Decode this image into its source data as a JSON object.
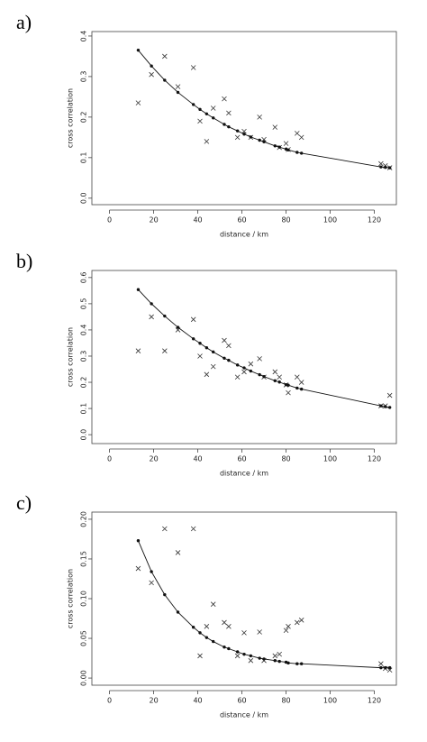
{
  "chart_data": [
    {
      "type": "scatter",
      "panel_label": "a)",
      "ylabel": "cross correlation",
      "xlabel": "distance / km",
      "x": [
        13,
        19,
        25,
        31,
        38,
        41,
        44,
        47,
        52,
        54,
        58,
        61,
        64,
        68,
        70,
        75,
        77,
        80,
        81,
        85,
        87,
        123,
        125,
        127
      ],
      "series": [
        {
          "marker": "x",
          "color": "#333333",
          "values": [
            0.235,
            0.305,
            0.35,
            0.275,
            0.322,
            0.19,
            0.14,
            0.222,
            0.245,
            0.21,
            0.15,
            0.165,
            0.15,
            0.2,
            0.145,
            0.175,
            0.125,
            0.135,
            0.12,
            0.16,
            0.15,
            0.085,
            0.08,
            0.075
          ]
        },
        {
          "marker": "dot",
          "line": true,
          "color": "#111111",
          "values": [
            0.365,
            0.326,
            0.291,
            0.261,
            0.231,
            0.219,
            0.208,
            0.198,
            0.182,
            0.176,
            0.166,
            0.158,
            0.151,
            0.143,
            0.139,
            0.129,
            0.126,
            0.121,
            0.119,
            0.113,
            0.111,
            0.077,
            0.076,
            0.075
          ]
        }
      ],
      "xlim": [
        -8,
        130
      ],
      "xticks": [
        0,
        20,
        40,
        60,
        80,
        100,
        120
      ],
      "ylim": [
        -0.016,
        0.411
      ],
      "yticks": [
        {
          "value": 0,
          "label": "0.0"
        },
        {
          "value": 0.1,
          "label": "0.1"
        },
        {
          "value": 0.2,
          "label": "0.2"
        },
        {
          "value": 0.3,
          "label": "0.3"
        },
        {
          "value": 0.4,
          "label": "0.4"
        }
      ]
    },
    {
      "type": "scatter",
      "panel_label": "b)",
      "ylabel": "cross correlation",
      "xlabel": "distance / km",
      "x": [
        13,
        19,
        25,
        31,
        38,
        41,
        44,
        47,
        52,
        54,
        58,
        61,
        64,
        68,
        70,
        75,
        77,
        80,
        81,
        85,
        87,
        123,
        125,
        127
      ],
      "series": [
        {
          "marker": "x",
          "color": "#333333",
          "values": [
            0.32,
            0.45,
            0.32,
            0.4,
            0.44,
            0.3,
            0.23,
            0.26,
            0.36,
            0.34,
            0.22,
            0.24,
            0.27,
            0.29,
            0.22,
            0.24,
            0.22,
            0.19,
            0.16,
            0.22,
            0.2,
            0.11,
            0.11,
            0.15
          ]
        },
        {
          "marker": "dot",
          "line": true,
          "color": "#111111",
          "values": [
            0.554,
            0.5,
            0.453,
            0.41,
            0.366,
            0.349,
            0.332,
            0.316,
            0.292,
            0.284,
            0.266,
            0.255,
            0.243,
            0.229,
            0.222,
            0.206,
            0.201,
            0.191,
            0.189,
            0.178,
            0.174,
            0.11,
            0.107,
            0.104
          ]
        }
      ],
      "xlim": [
        -8,
        130
      ],
      "xticks": [
        0,
        20,
        40,
        60,
        80,
        100,
        120
      ],
      "ylim": [
        -0.034,
        0.627
      ],
      "yticks": [
        {
          "value": 0,
          "label": "0.0"
        },
        {
          "value": 0.1,
          "label": "0.1"
        },
        {
          "value": 0.2,
          "label": "0.2"
        },
        {
          "value": 0.3,
          "label": "0.3"
        },
        {
          "value": 0.4,
          "label": "0.4"
        },
        {
          "value": 0.5,
          "label": "0.5"
        },
        {
          "value": 0.6,
          "label": "0.6"
        }
      ]
    },
    {
      "type": "scatter",
      "panel_label": "c)",
      "ylabel": "cross correlation",
      "xlabel": "distance / km",
      "x": [
        13,
        19,
        25,
        31,
        38,
        41,
        44,
        47,
        52,
        54,
        58,
        61,
        64,
        68,
        70,
        75,
        77,
        80,
        81,
        85,
        87,
        123,
        125,
        127
      ],
      "series": [
        {
          "marker": "x",
          "color": "#333333",
          "values": [
            0.138,
            0.12,
            0.188,
            0.158,
            0.188,
            0.028,
            0.065,
            0.093,
            0.07,
            0.065,
            0.028,
            0.057,
            0.022,
            0.058,
            0.022,
            0.028,
            0.03,
            0.06,
            0.065,
            0.07,
            0.073,
            0.018,
            0.012,
            0.01
          ]
        },
        {
          "marker": "dot",
          "line": true,
          "color": "#111111",
          "values": [
            0.173,
            0.134,
            0.105,
            0.083,
            0.064,
            0.057,
            0.051,
            0.046,
            0.039,
            0.037,
            0.033,
            0.03,
            0.028,
            0.025,
            0.024,
            0.022,
            0.021,
            0.02,
            0.019,
            0.018,
            0.018,
            0.013,
            0.013,
            0.013
          ]
        }
      ],
      "xlim": [
        -8,
        130
      ],
      "xticks": [
        0,
        20,
        40,
        60,
        80,
        100,
        120
      ],
      "ylim": [
        -0.009,
        0.209
      ],
      "yticks": [
        {
          "value": 0,
          "label": "0.00"
        },
        {
          "value": 0.05,
          "label": "0.05"
        },
        {
          "value": 0.1,
          "label": "0.10"
        },
        {
          "value": 0.15,
          "label": "0.15"
        },
        {
          "value": 0.2,
          "label": "0.20"
        }
      ]
    }
  ]
}
